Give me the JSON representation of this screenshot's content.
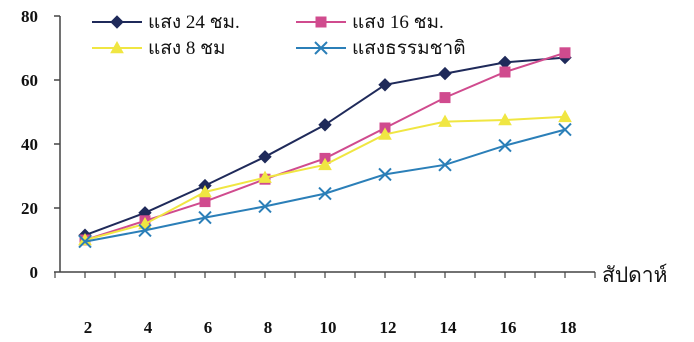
{
  "chart_data": {
    "type": "line",
    "x": [
      2,
      4,
      6,
      8,
      10,
      12,
      14,
      16,
      18
    ],
    "xlabel": "สัปดาห์",
    "ylabel": "",
    "ylim": [
      0,
      80
    ],
    "yticks": [
      "0",
      "20",
      "40",
      "60",
      "80"
    ],
    "xticks": [
      "2",
      "4",
      "6",
      "8",
      "10",
      "12",
      "14",
      "16",
      "18"
    ],
    "legend": "top-left",
    "series": [
      {
        "name": "แสง 24 ชม.",
        "values": [
          11.5,
          18.5,
          27,
          36,
          46,
          58.5,
          62,
          65.5,
          67
        ],
        "color": "#1f2a5a",
        "marker": "diamond"
      },
      {
        "name": "แสง 16 ชม.",
        "values": [
          10,
          16,
          22,
          29,
          35.5,
          45,
          54.5,
          62.5,
          68.5
        ],
        "color": "#d04b8e",
        "marker": "square"
      },
      {
        "name": "แสง 8 ชม",
        "values": [
          10,
          15,
          25,
          29.5,
          33.5,
          43,
          47,
          47.5,
          48.5
        ],
        "color": "#f0e642",
        "marker": "triangle"
      },
      {
        "name": "แสงธรรมชาติ",
        "values": [
          9.5,
          13,
          17,
          20.5,
          24.5,
          30.5,
          33.5,
          39.5,
          44.5
        ],
        "color": "#2b7fb8",
        "marker": "x"
      }
    ]
  }
}
